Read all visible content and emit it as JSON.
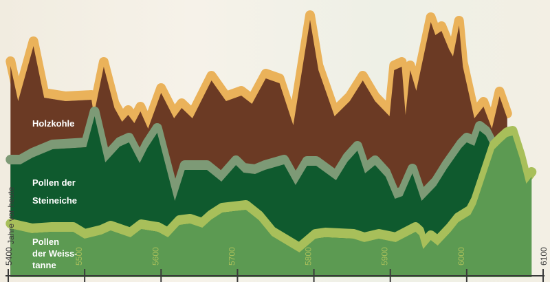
{
  "colors": {
    "background": "#f3efe4",
    "holzkohle_fill": "#6b3a24",
    "holzkohle_rim": "#eab25a",
    "steineiche_fill": "#0f5a2e",
    "steineiche_rim": "#7d9a76",
    "weisstanne_fill": "#5c9a52",
    "weisstanne_rim": "#a8bf5a",
    "axis": "#3a3a3a",
    "label_light": "#ffffff",
    "axis_text": "#3a3a3a"
  },
  "chart_data": {
    "type": "area",
    "stacked": true,
    "xlabel": "Jahre vor heute",
    "xlim": [
      5400,
      6100
    ],
    "x_ticks": [
      5400,
      5500,
      5600,
      5700,
      5800,
      5900,
      6000,
      6100
    ],
    "x_tick_labels": [
      "5400",
      "5500",
      "5600",
      "5700",
      "5800",
      "5900",
      "6000",
      "6100"
    ],
    "grid": false,
    "legend": "inline labels on left",
    "series": [
      {
        "name": "Holzkohle",
        "label_lines": [
          "Holzkohle"
        ],
        "points": [
          [
            5403,
            89
          ],
          [
            5413,
            140
          ],
          [
            5433,
            60
          ],
          [
            5447,
            135
          ],
          [
            5475,
            140
          ],
          [
            5509,
            138
          ],
          [
            5512,
            160
          ],
          [
            5525,
            90
          ],
          [
            5539,
            150
          ],
          [
            5549,
            170
          ],
          [
            5557,
            160
          ],
          [
            5565,
            172
          ],
          [
            5573,
            155
          ],
          [
            5583,
            180
          ],
          [
            5600,
            128
          ],
          [
            5617,
            165
          ],
          [
            5627,
            150
          ],
          [
            5641,
            165
          ],
          [
            5666,
            110
          ],
          [
            5685,
            140
          ],
          [
            5705,
            132
          ],
          [
            5719,
            144
          ],
          [
            5737,
            107
          ],
          [
            5755,
            114
          ],
          [
            5773,
            175
          ],
          [
            5795,
            22
          ],
          [
            5806,
            95
          ],
          [
            5827,
            162
          ],
          [
            5847,
            140
          ],
          [
            5864,
            110
          ],
          [
            5880,
            140
          ],
          [
            5899,
            162
          ],
          [
            5905,
            95
          ],
          [
            5915,
            90
          ],
          [
            5920,
            160
          ],
          [
            5926,
            95
          ],
          [
            5934,
            125
          ],
          [
            5953,
            25
          ],
          [
            5959,
            44
          ],
          [
            5967,
            38
          ],
          [
            5977,
            65
          ],
          [
            5982,
            75
          ],
          [
            5990,
            30
          ],
          [
            5995,
            90
          ],
          [
            6010,
            165
          ],
          [
            6022,
            148
          ],
          [
            6033,
            180
          ],
          [
            6043,
            133
          ],
          [
            6053,
            165
          ]
        ]
      },
      {
        "name": "Pollen der Steineiche",
        "label_lines": [
          "Pollen der",
          "Steineiche"
        ],
        "points": [
          [
            5403,
            232
          ],
          [
            5416,
            232
          ],
          [
            5432,
            222
          ],
          [
            5458,
            210
          ],
          [
            5502,
            207
          ],
          [
            5513,
            162
          ],
          [
            5527,
            229
          ],
          [
            5546,
            206
          ],
          [
            5558,
            200
          ],
          [
            5572,
            230
          ],
          [
            5582,
            208
          ],
          [
            5595,
            186
          ],
          [
            5618,
            285
          ],
          [
            5631,
            240
          ],
          [
            5660,
            240
          ],
          [
            5679,
            257
          ],
          [
            5698,
            233
          ],
          [
            5708,
            244
          ],
          [
            5723,
            246
          ],
          [
            5736,
            240
          ],
          [
            5761,
            232
          ],
          [
            5776,
            262
          ],
          [
            5791,
            234
          ],
          [
            5803,
            234
          ],
          [
            5829,
            255
          ],
          [
            5844,
            228
          ],
          [
            5857,
            212
          ],
          [
            5867,
            245
          ],
          [
            5880,
            233
          ],
          [
            5894,
            250
          ],
          [
            5906,
            282
          ],
          [
            5916,
            278
          ],
          [
            5929,
            245
          ],
          [
            5941,
            285
          ],
          [
            5960,
            263
          ],
          [
            5974,
            238
          ],
          [
            5993,
            208
          ],
          [
            6000,
            200
          ],
          [
            6010,
            205
          ],
          [
            6017,
            183
          ],
          [
            6025,
            190
          ],
          [
            6032,
            205
          ],
          [
            6041,
            210
          ],
          [
            6052,
            230
          ],
          [
            6058,
            232
          ]
        ]
      },
      {
        "name": "Pollen der Weisstanne",
        "label_lines": [
          "Pollen",
          "der Weiss-",
          "tanne"
        ],
        "points": [
          [
            5403,
            325
          ],
          [
            5431,
            332
          ],
          [
            5457,
            330
          ],
          [
            5485,
            330
          ],
          [
            5500,
            340
          ],
          [
            5522,
            334
          ],
          [
            5534,
            328
          ],
          [
            5560,
            338
          ],
          [
            5574,
            326
          ],
          [
            5596,
            330
          ],
          [
            5609,
            338
          ],
          [
            5624,
            320
          ],
          [
            5638,
            318
          ],
          [
            5654,
            324
          ],
          [
            5666,
            312
          ],
          [
            5680,
            302
          ],
          [
            5711,
            298
          ],
          [
            5728,
            313
          ],
          [
            5745,
            336
          ],
          [
            5769,
            352
          ],
          [
            5781,
            360
          ],
          [
            5802,
            340
          ],
          [
            5815,
            338
          ],
          [
            5852,
            340
          ],
          [
            5866,
            345
          ],
          [
            5885,
            340
          ],
          [
            5907,
            345
          ],
          [
            5933,
            330
          ],
          [
            5938,
            335
          ],
          [
            5943,
            355
          ],
          [
            5953,
            342
          ],
          [
            5962,
            350
          ],
          [
            5979,
            330
          ],
          [
            5989,
            316
          ],
          [
            6005,
            305
          ],
          [
            6012,
            290
          ],
          [
            6036,
            210
          ],
          [
            6045,
            200
          ],
          [
            6053,
            192
          ],
          [
            6060,
            190
          ],
          [
            6070,
            225
          ],
          [
            6078,
            260
          ],
          [
            6085,
            250
          ]
        ]
      }
    ]
  }
}
